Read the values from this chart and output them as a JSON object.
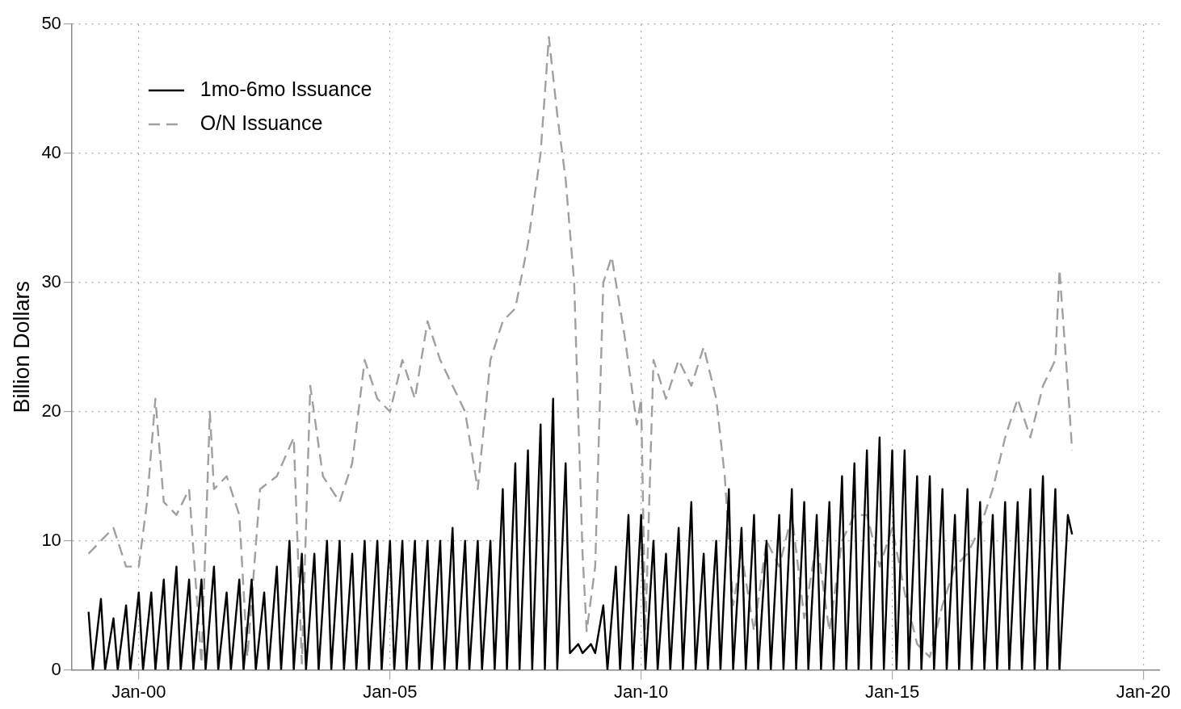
{
  "chart_data": {
    "type": "line",
    "ylabel": "Billion Dollars",
    "xlim": [
      "1998-09",
      "2020-05"
    ],
    "ylim": [
      0,
      50
    ],
    "yticks": [
      0,
      10,
      20,
      30,
      40,
      50
    ],
    "xticks": [
      {
        "value": "2000-01",
        "label": "Jan-00"
      },
      {
        "value": "2005-01",
        "label": "Jan-05"
      },
      {
        "value": "2010-01",
        "label": "Jan-10"
      },
      {
        "value": "2015-01",
        "label": "Jan-15"
      },
      {
        "value": "2020-01",
        "label": "Jan-20"
      }
    ],
    "grid": true,
    "legend": "top left",
    "marker": "none",
    "series": [
      {
        "name": "1mo-6mo Issuance",
        "color": "#000000",
        "line_style": "solid",
        "x": [
          "1999-01",
          "1999-02",
          "1999-04",
          "1999-05",
          "1999-07",
          "1999-08",
          "1999-10",
          "1999-11",
          "2000-01",
          "2000-02",
          "2000-04",
          "2000-05",
          "2000-07",
          "2000-08",
          "2000-10",
          "2000-11",
          "2001-01",
          "2001-02",
          "2001-04",
          "2001-05",
          "2001-07",
          "2001-08",
          "2001-10",
          "2001-11",
          "2002-01",
          "2002-02",
          "2002-04",
          "2002-05",
          "2002-07",
          "2002-08",
          "2002-10",
          "2002-11",
          "2003-01",
          "2003-02",
          "2003-04",
          "2003-05",
          "2003-07",
          "2003-08",
          "2003-10",
          "2003-11",
          "2004-01",
          "2004-02",
          "2004-04",
          "2004-05",
          "2004-07",
          "2004-08",
          "2004-10",
          "2004-11",
          "2005-01",
          "2005-02",
          "2005-04",
          "2005-05",
          "2005-07",
          "2005-08",
          "2005-10",
          "2005-11",
          "2006-01",
          "2006-02",
          "2006-04",
          "2006-05",
          "2006-07",
          "2006-08",
          "2006-10",
          "2006-11",
          "2007-01",
          "2007-02",
          "2007-04",
          "2007-05",
          "2007-07",
          "2007-08",
          "2007-10",
          "2007-11",
          "2008-01",
          "2008-02",
          "2008-04",
          "2008-05",
          "2008-07",
          "2008-08",
          "2008-10",
          "2008-11",
          "2009-01",
          "2009-02",
          "2009-04",
          "2009-05",
          "2009-07",
          "2009-08",
          "2009-10",
          "2009-11",
          "2010-01",
          "2010-02",
          "2010-04",
          "2010-05",
          "2010-07",
          "2010-08",
          "2010-10",
          "2010-11",
          "2011-01",
          "2011-02",
          "2011-04",
          "2011-05",
          "2011-07",
          "2011-08",
          "2011-10",
          "2011-11",
          "2012-01",
          "2012-02",
          "2012-04",
          "2012-05",
          "2012-07",
          "2012-08",
          "2012-10",
          "2012-11",
          "2013-01",
          "2013-02",
          "2013-04",
          "2013-05",
          "2013-07",
          "2013-08",
          "2013-10",
          "2013-11",
          "2014-01",
          "2014-02",
          "2014-04",
          "2014-05",
          "2014-07",
          "2014-08",
          "2014-10",
          "2014-11",
          "2015-01",
          "2015-02",
          "2015-04",
          "2015-05",
          "2015-07",
          "2015-08",
          "2015-10",
          "2015-11",
          "2016-01",
          "2016-02",
          "2016-04",
          "2016-05",
          "2016-07",
          "2016-08",
          "2016-10",
          "2016-11",
          "2017-01",
          "2017-02",
          "2017-04",
          "2017-05",
          "2017-07",
          "2017-08",
          "2017-10",
          "2017-11",
          "2018-01",
          "2018-02",
          "2018-04",
          "2018-05",
          "2018-07",
          "2018-08"
        ],
        "values": [
          4.5,
          0,
          5.5,
          0,
          4,
          0,
          5,
          0,
          6,
          0,
          6,
          0,
          7,
          0,
          8,
          0,
          7,
          0,
          7,
          0,
          8,
          0,
          6,
          0,
          7,
          0,
          7,
          0,
          6,
          0,
          8,
          0,
          10,
          0,
          9,
          0,
          9,
          0,
          10,
          0,
          10,
          0,
          9,
          0,
          10,
          0,
          10,
          0,
          10,
          0,
          10,
          0,
          10,
          0,
          10,
          0,
          10,
          0,
          11,
          0,
          10,
          0,
          10,
          0,
          10,
          0,
          14,
          0,
          16,
          0,
          17,
          0,
          19,
          0,
          21,
          0,
          16,
          1.3,
          2,
          1.3,
          2,
          1.3,
          5,
          0,
          8,
          0,
          12,
          0,
          12,
          0,
          10,
          0,
          9,
          0,
          11,
          0,
          13,
          0,
          9,
          0,
          10,
          0,
          14,
          0,
          11,
          0,
          12,
          0,
          10,
          0,
          12,
          0,
          14,
          0,
          13,
          0,
          12,
          0,
          13,
          0,
          15,
          0,
          16,
          0,
          17,
          0,
          18,
          0,
          17,
          0,
          17,
          0,
          15,
          0,
          15,
          0,
          14,
          0,
          12,
          0,
          14,
          0,
          13,
          0,
          12,
          0,
          13,
          0,
          13,
          0,
          14,
          0,
          15,
          0,
          14,
          0,
          12,
          10.5
        ]
      },
      {
        "name": "O/N Issuance",
        "color": "#a0a0a0",
        "line_style": "dashed",
        "x": [
          "1999-01",
          "1999-04",
          "1999-07",
          "1999-10",
          "2000-01",
          "2000-03",
          "2000-05",
          "2000-07",
          "2000-10",
          "2001-01",
          "2001-04",
          "2001-06",
          "2001-07",
          "2001-10",
          "2002-01",
          "2002-03",
          "2002-06",
          "2002-10",
          "2003-02",
          "2003-04",
          "2003-06",
          "2003-09",
          "2004-01",
          "2004-04",
          "2004-07",
          "2004-10",
          "2005-01",
          "2005-04",
          "2005-07",
          "2005-10",
          "2006-01",
          "2006-04",
          "2006-07",
          "2006-10",
          "2007-01",
          "2007-04",
          "2007-07",
          "2007-10",
          "2008-01",
          "2008-03",
          "2008-05",
          "2008-07",
          "2008-09",
          "2008-11",
          "2008-12",
          "2009-02",
          "2009-04",
          "2009-06",
          "2009-09",
          "2009-12",
          "2010-01",
          "2010-02",
          "2010-04",
          "2010-07",
          "2010-10",
          "2011-01",
          "2011-04",
          "2011-07",
          "2011-09",
          "2011-11",
          "2012-01",
          "2012-04",
          "2012-07",
          "2012-10",
          "2013-01",
          "2013-04",
          "2013-07",
          "2013-10",
          "2014-01",
          "2014-04",
          "2014-07",
          "2014-10",
          "2015-01",
          "2015-04",
          "2015-07",
          "2015-10",
          "2016-01",
          "2016-04",
          "2016-07",
          "2016-10",
          "2017-01",
          "2017-04",
          "2017-07",
          "2017-10",
          "2018-01",
          "2018-04",
          "2018-05",
          "2018-07",
          "2018-08"
        ],
        "values": [
          9,
          10,
          11,
          8,
          8,
          13,
          21,
          13,
          12,
          14,
          0.5,
          20,
          14,
          15,
          12,
          1,
          14,
          15,
          18,
          0.5,
          22,
          15,
          13,
          16,
          24,
          21,
          20,
          24,
          21,
          27,
          24,
          22,
          20,
          14,
          24,
          27,
          28,
          33,
          40,
          49,
          43,
          38,
          30,
          9,
          3,
          8,
          30,
          32,
          26,
          19,
          21,
          3,
          24,
          21,
          24,
          22,
          25,
          21,
          15,
          5,
          9,
          3,
          10,
          8,
          12,
          4,
          10,
          3,
          10,
          12,
          12,
          8,
          11,
          6,
          2,
          1,
          5,
          8,
          9,
          11,
          14,
          18,
          21,
          18,
          22,
          24,
          31,
          22,
          17
        ]
      }
    ]
  }
}
